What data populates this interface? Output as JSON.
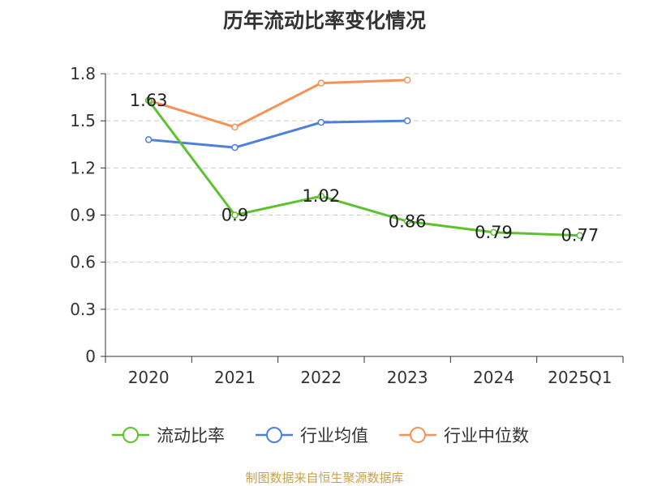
{
  "chart_data": {
    "type": "line",
    "title": "历年流动比率变化情况",
    "categories": [
      "2020",
      "2021",
      "2022",
      "2023",
      "2024",
      "2025Q1"
    ],
    "ylim": [
      0,
      1.8
    ],
    "yticks": [
      "0",
      "0.3",
      "0.6",
      "0.9",
      "1.2",
      "1.5",
      "1.8"
    ],
    "grid": true,
    "legend_position": "bottom",
    "series": [
      {
        "name": "流动比率",
        "color": "#5ec12f",
        "values": [
          1.63,
          0.9,
          1.02,
          0.86,
          0.79,
          0.77
        ],
        "labels": [
          "1.63",
          "0.9",
          "1.02",
          "0.86",
          "0.79",
          "0.77"
        ]
      },
      {
        "name": "行业均值",
        "color": "#4f7fd8",
        "values": [
          1.38,
          1.33,
          1.49,
          1.5,
          null,
          null
        ],
        "labels": []
      },
      {
        "name": "行业中位数",
        "color": "#f4925a",
        "values": [
          1.63,
          1.46,
          1.74,
          1.76,
          null,
          null
        ],
        "labels": []
      }
    ]
  },
  "source_note": "制图数据来自恒生聚源数据库"
}
